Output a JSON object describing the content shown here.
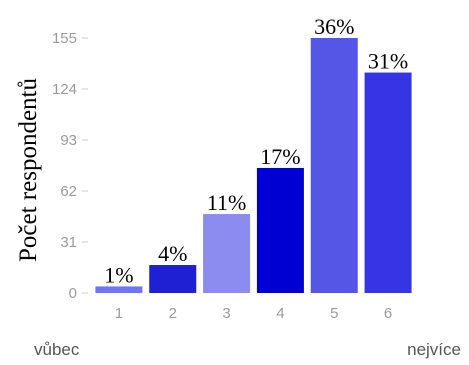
{
  "chart_data": {
    "type": "bar",
    "title": "",
    "ylabel": "Počet respondentů",
    "xlabel": "",
    "categories": [
      "1",
      "2",
      "3",
      "4",
      "5",
      "6"
    ],
    "values": [
      4,
      17,
      48,
      76,
      155,
      134
    ],
    "data_labels": [
      "1%",
      "4%",
      "11%",
      "17%",
      "36%",
      "31%"
    ],
    "bar_colors": [
      "#6f76f0",
      "#1f1fd4",
      "#8c8cf0",
      "#0000d2",
      "#5555e6",
      "#3535e6"
    ],
    "yticks": [
      "0",
      "31",
      "62",
      "93",
      "124",
      "155"
    ],
    "ylim": [
      0,
      155
    ],
    "grid": false,
    "scale_ends": {
      "min": "vůbec",
      "max": "nejvíce"
    }
  }
}
